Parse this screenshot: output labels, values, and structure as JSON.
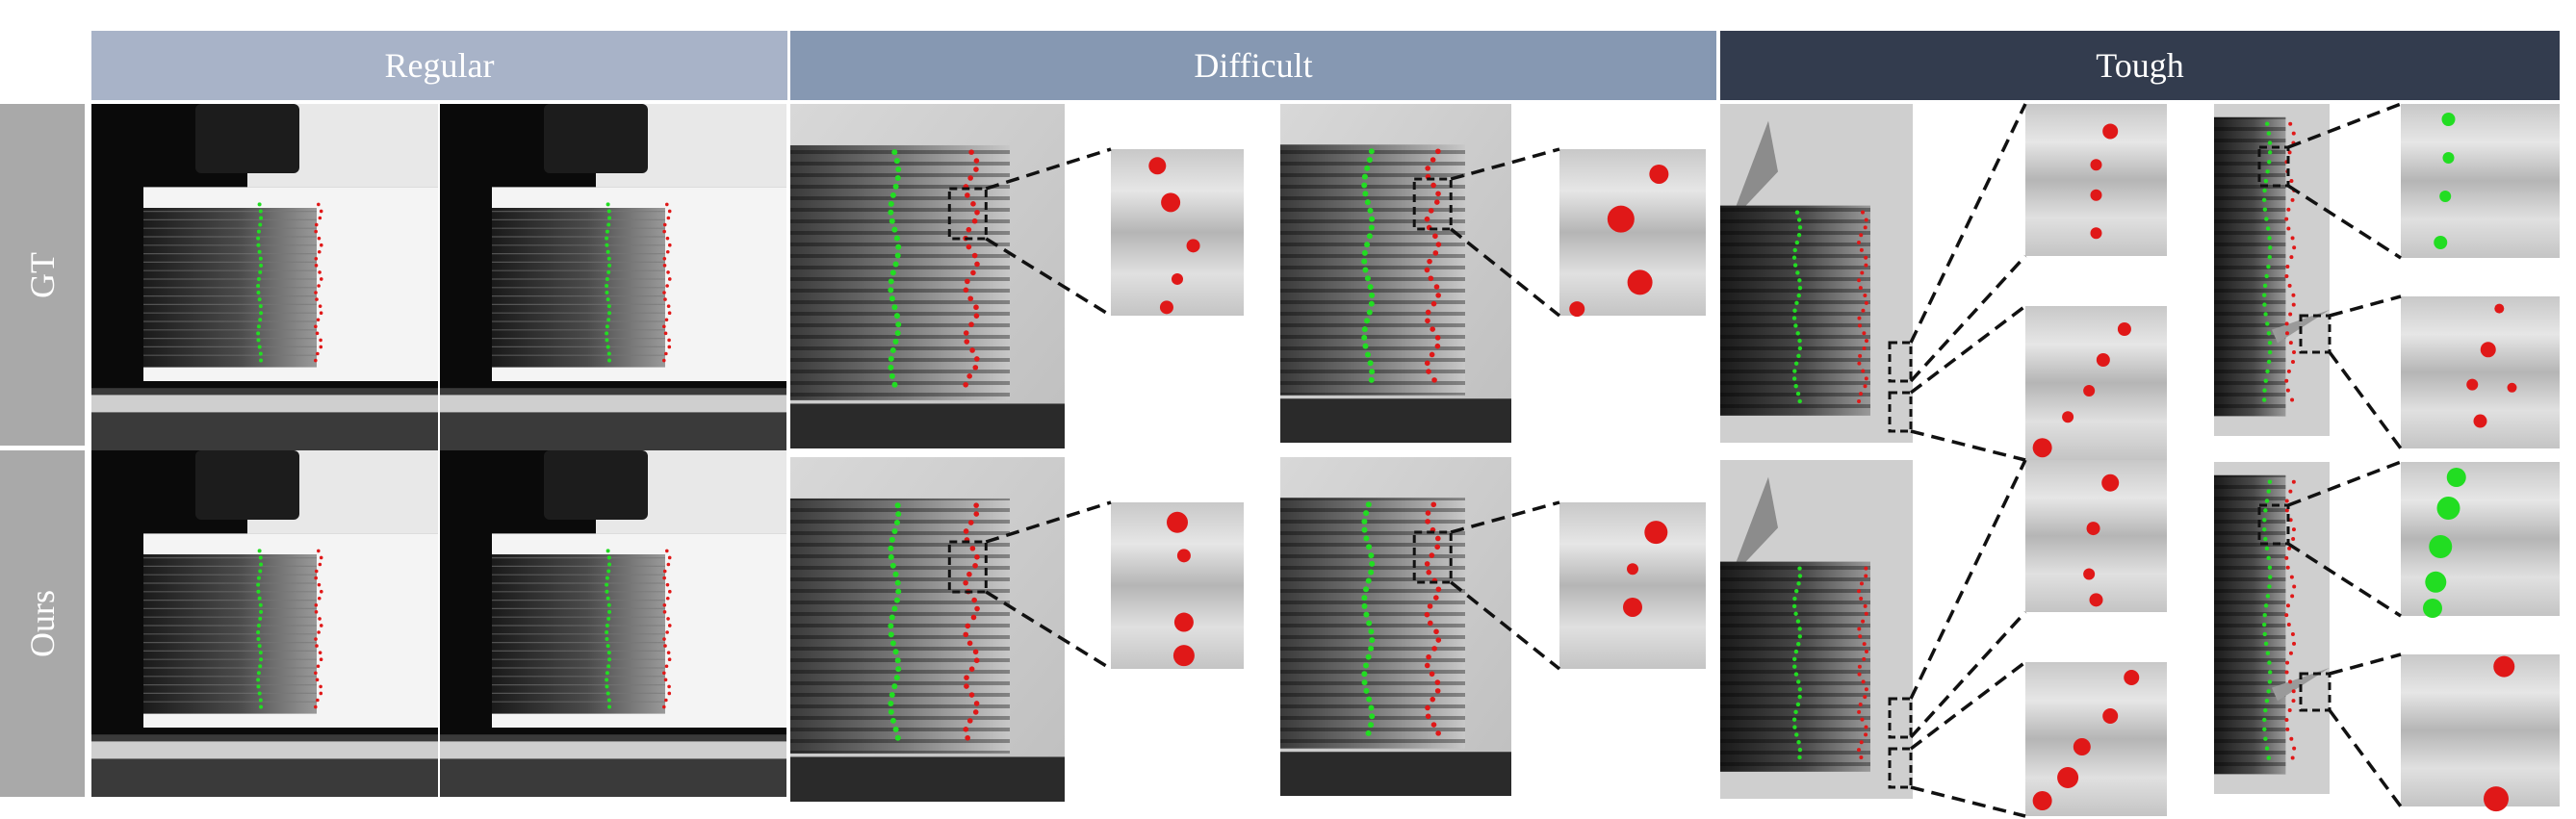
{
  "headers": [
    {
      "label": "Regular",
      "color": "#a8b3c8"
    },
    {
      "label": "Difficult",
      "color": "#8698b2"
    },
    {
      "label": "Tough",
      "color": "#333c4e"
    }
  ],
  "rows": [
    {
      "label": "GT"
    },
    {
      "label": "Ours"
    }
  ],
  "colors": {
    "inner_points": "#22dd22",
    "outer_points": "#e01818",
    "zoom_lines": "#111111"
  }
}
